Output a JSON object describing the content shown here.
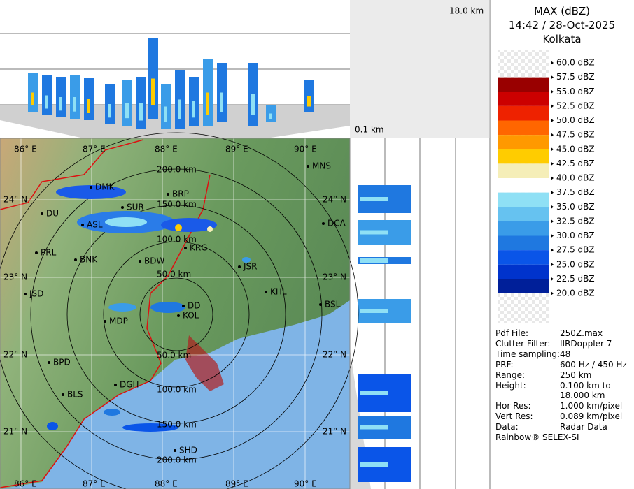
{
  "header": {
    "title": "MAX (dBZ)",
    "time": "14:42 / 28-Oct-2025",
    "site": "Kolkata"
  },
  "profile": {
    "top_height": "18.0 km",
    "bottom_height": "0.1 km"
  },
  "legend": [
    {
      "label": "60.0 dBZ",
      "color": "#e4e4e4"
    },
    {
      "label": "57.5 dBZ",
      "color": "#990000"
    },
    {
      "label": "55.0 dBZ",
      "color": "#cc0000"
    },
    {
      "label": "52.5 dBZ",
      "color": "#ee2200"
    },
    {
      "label": "50.0 dBZ",
      "color": "#ff6600"
    },
    {
      "label": "47.5 dBZ",
      "color": "#ff9900"
    },
    {
      "label": "45.0 dBZ",
      "color": "#ffcc00"
    },
    {
      "label": "42.5 dBZ",
      "color": "#f5eeb8"
    },
    {
      "label": "40.0 dBZ",
      "color": "#ffffff"
    },
    {
      "label": "37.5 dBZ",
      "color": "#8fe0f5"
    },
    {
      "label": "35.0 dBZ",
      "color": "#66c2f0"
    },
    {
      "label": "32.5 dBZ",
      "color": "#3a9ce8"
    },
    {
      "label": "30.0 dBZ",
      "color": "#1f78e0"
    },
    {
      "label": "27.5 dBZ",
      "color": "#0a55e8"
    },
    {
      "label": "25.0 dBZ",
      "color": "#0033cc"
    },
    {
      "label": "22.5 dBZ",
      "color": "#001f99"
    },
    {
      "label": "20.0 dBZ",
      "color": "#e4e4e4"
    }
  ],
  "info": [
    {
      "key": "Pdf File:",
      "value": "250Z.max"
    },
    {
      "key": "Clutter Filter:",
      "value": "IIRDoppler 7"
    },
    {
      "key": "Time sampling:",
      "value": "48"
    },
    {
      "key": "PRF:",
      "value": "600 Hz / 450 Hz"
    },
    {
      "key": "Range:",
      "value": "250 km"
    },
    {
      "key": "Height:",
      "value": "0.100 km to 18.000 km"
    },
    {
      "key": "Hor Res:",
      "value": "1.000 km/pixel"
    },
    {
      "key": "Vert Res:",
      "value": "0.089 km/pixel"
    },
    {
      "key": "Data:",
      "value": "Radar Data"
    }
  ],
  "footer": "Rainbow® SELEX-SI",
  "map": {
    "lon_labels": [
      "86° E",
      "87° E",
      "88° E",
      "89° E",
      "90° E"
    ],
    "lat_labels": [
      "24° N",
      "23° N",
      "22° N",
      "21° N"
    ],
    "ring_labels_north": [
      "200.0 km",
      "150.0 km",
      "100.0 km",
      "50.0 km"
    ],
    "ring_labels_south": [
      "50.0 km",
      "100.0 km",
      "150.0 km",
      "200.0 km"
    ],
    "cities": [
      "MNS",
      "BRP",
      "DMK",
      "SUR",
      "DU",
      "ASL",
      "PRL",
      "BNK",
      "BDW",
      "KRG",
      "JSR",
      "DCA",
      "KHL",
      "BSL",
      "JSD",
      "MDP",
      "KOL",
      "DD",
      "BPD",
      "DGH",
      "BLS",
      "SHD"
    ]
  }
}
